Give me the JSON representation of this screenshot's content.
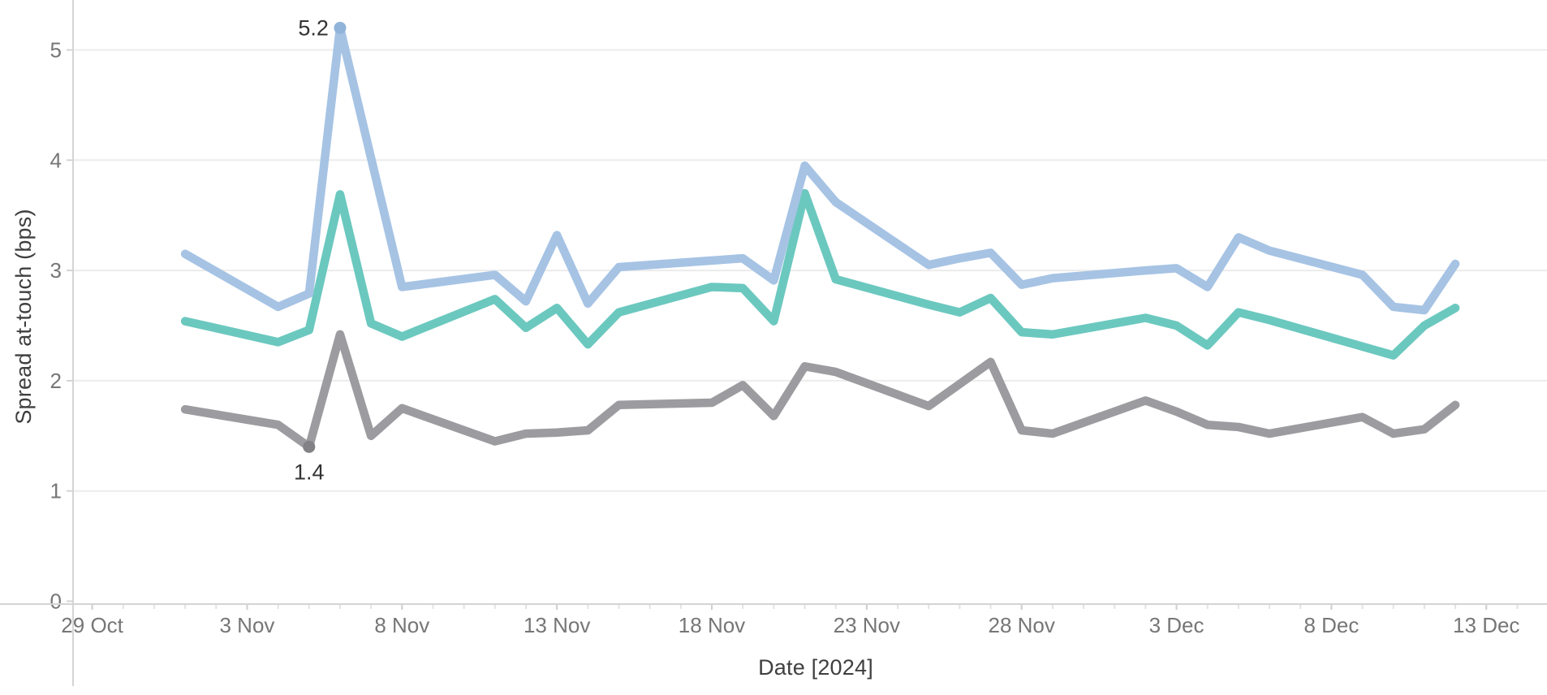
{
  "chart_data": {
    "type": "line",
    "title": "",
    "xlabel": "Date [2024]",
    "ylabel": "Spread at-touch (bps)",
    "legend": "none",
    "grid": "horizontal",
    "y_ticks": [
      0,
      1,
      2,
      3,
      4,
      5
    ],
    "ylim": [
      0,
      5.45
    ],
    "x_ticks": [
      {
        "label": "29 Oct",
        "day": 0
      },
      {
        "label": "3 Nov",
        "day": 5
      },
      {
        "label": "8 Nov",
        "day": 10
      },
      {
        "label": "13 Nov",
        "day": 15
      },
      {
        "label": "18 Nov",
        "day": 20
      },
      {
        "label": "23 Nov",
        "day": 25
      },
      {
        "label": "28 Nov",
        "day": 30
      },
      {
        "label": "3 Dec",
        "day": 35
      },
      {
        "label": "8 Dec",
        "day": 40
      },
      {
        "label": "13 Dec",
        "day": 45
      }
    ],
    "x_minor_tick_days": 1,
    "dates": [
      "1 Nov",
      "4 Nov",
      "5 Nov",
      "6 Nov",
      "7 Nov",
      "8 Nov",
      "11 Nov",
      "12 Nov",
      "13 Nov",
      "14 Nov",
      "15 Nov",
      "18 Nov",
      "19 Nov",
      "20 Nov",
      "21 Nov",
      "22 Nov",
      "25 Nov",
      "26 Nov",
      "27 Nov",
      "28 Nov",
      "29 Nov",
      "2 Dec",
      "3 Dec",
      "4 Dec",
      "5 Dec",
      "6 Dec",
      "9 Dec",
      "10 Dec",
      "11 Dec",
      "12 Dec"
    ],
    "day_offsets": [
      3,
      6,
      7,
      8,
      9,
      10,
      13,
      14,
      15,
      16,
      17,
      20,
      21,
      22,
      23,
      24,
      27,
      28,
      29,
      30,
      31,
      34,
      35,
      36,
      37,
      38,
      41,
      42,
      43,
      44
    ],
    "series": [
      {
        "name": "gray",
        "color": "#9c9ca0",
        "values": [
          1.74,
          1.6,
          1.4,
          2.42,
          1.5,
          1.75,
          1.45,
          1.52,
          1.53,
          1.55,
          1.78,
          1.8,
          1.96,
          1.68,
          2.13,
          2.08,
          1.77,
          1.97,
          2.17,
          1.55,
          1.52,
          1.82,
          1.72,
          1.6,
          1.58,
          1.52,
          1.67,
          1.52,
          1.56,
          1.78
        ]
      },
      {
        "name": "teal",
        "color": "#6bc8bf",
        "values": [
          2.54,
          2.35,
          2.46,
          3.69,
          2.52,
          2.4,
          2.74,
          2.48,
          2.66,
          2.33,
          2.62,
          2.85,
          2.84,
          2.54,
          3.7,
          2.92,
          2.69,
          2.62,
          2.75,
          2.44,
          2.42,
          2.57,
          2.5,
          2.32,
          2.62,
          2.55,
          2.31,
          2.23,
          2.5,
          2.66
        ]
      },
      {
        "name": "blue",
        "color": "#a6c3e4",
        "values": [
          3.15,
          2.67,
          2.79,
          5.2,
          4.02,
          2.85,
          2.96,
          2.72,
          3.32,
          2.7,
          3.03,
          3.09,
          3.11,
          2.91,
          3.95,
          3.62,
          3.05,
          3.11,
          3.16,
          2.87,
          2.93,
          3.0,
          3.02,
          2.85,
          3.3,
          3.18,
          2.96,
          2.67,
          2.64,
          3.06
        ]
      }
    ],
    "annotations": [
      {
        "series": "blue",
        "date": "6 Nov",
        "day": 8,
        "value": 5.2,
        "label": "5.2",
        "dot_color": "#90b4da",
        "placement": "left"
      },
      {
        "series": "gray",
        "date": "5 Nov",
        "day": 7,
        "value": 1.4,
        "label": "1.4",
        "dot_color": "#818186",
        "placement": "below"
      }
    ],
    "style": {
      "gridline_color": "#ececec",
      "axis_line_color": "#d4d4d4",
      "minor_tick_color": "#e2e2e2",
      "major_tick_color": "#cfcfcf",
      "tick_label_color": "#767676",
      "annotation_text_color": "#333333",
      "line_width": 10.5
    }
  }
}
